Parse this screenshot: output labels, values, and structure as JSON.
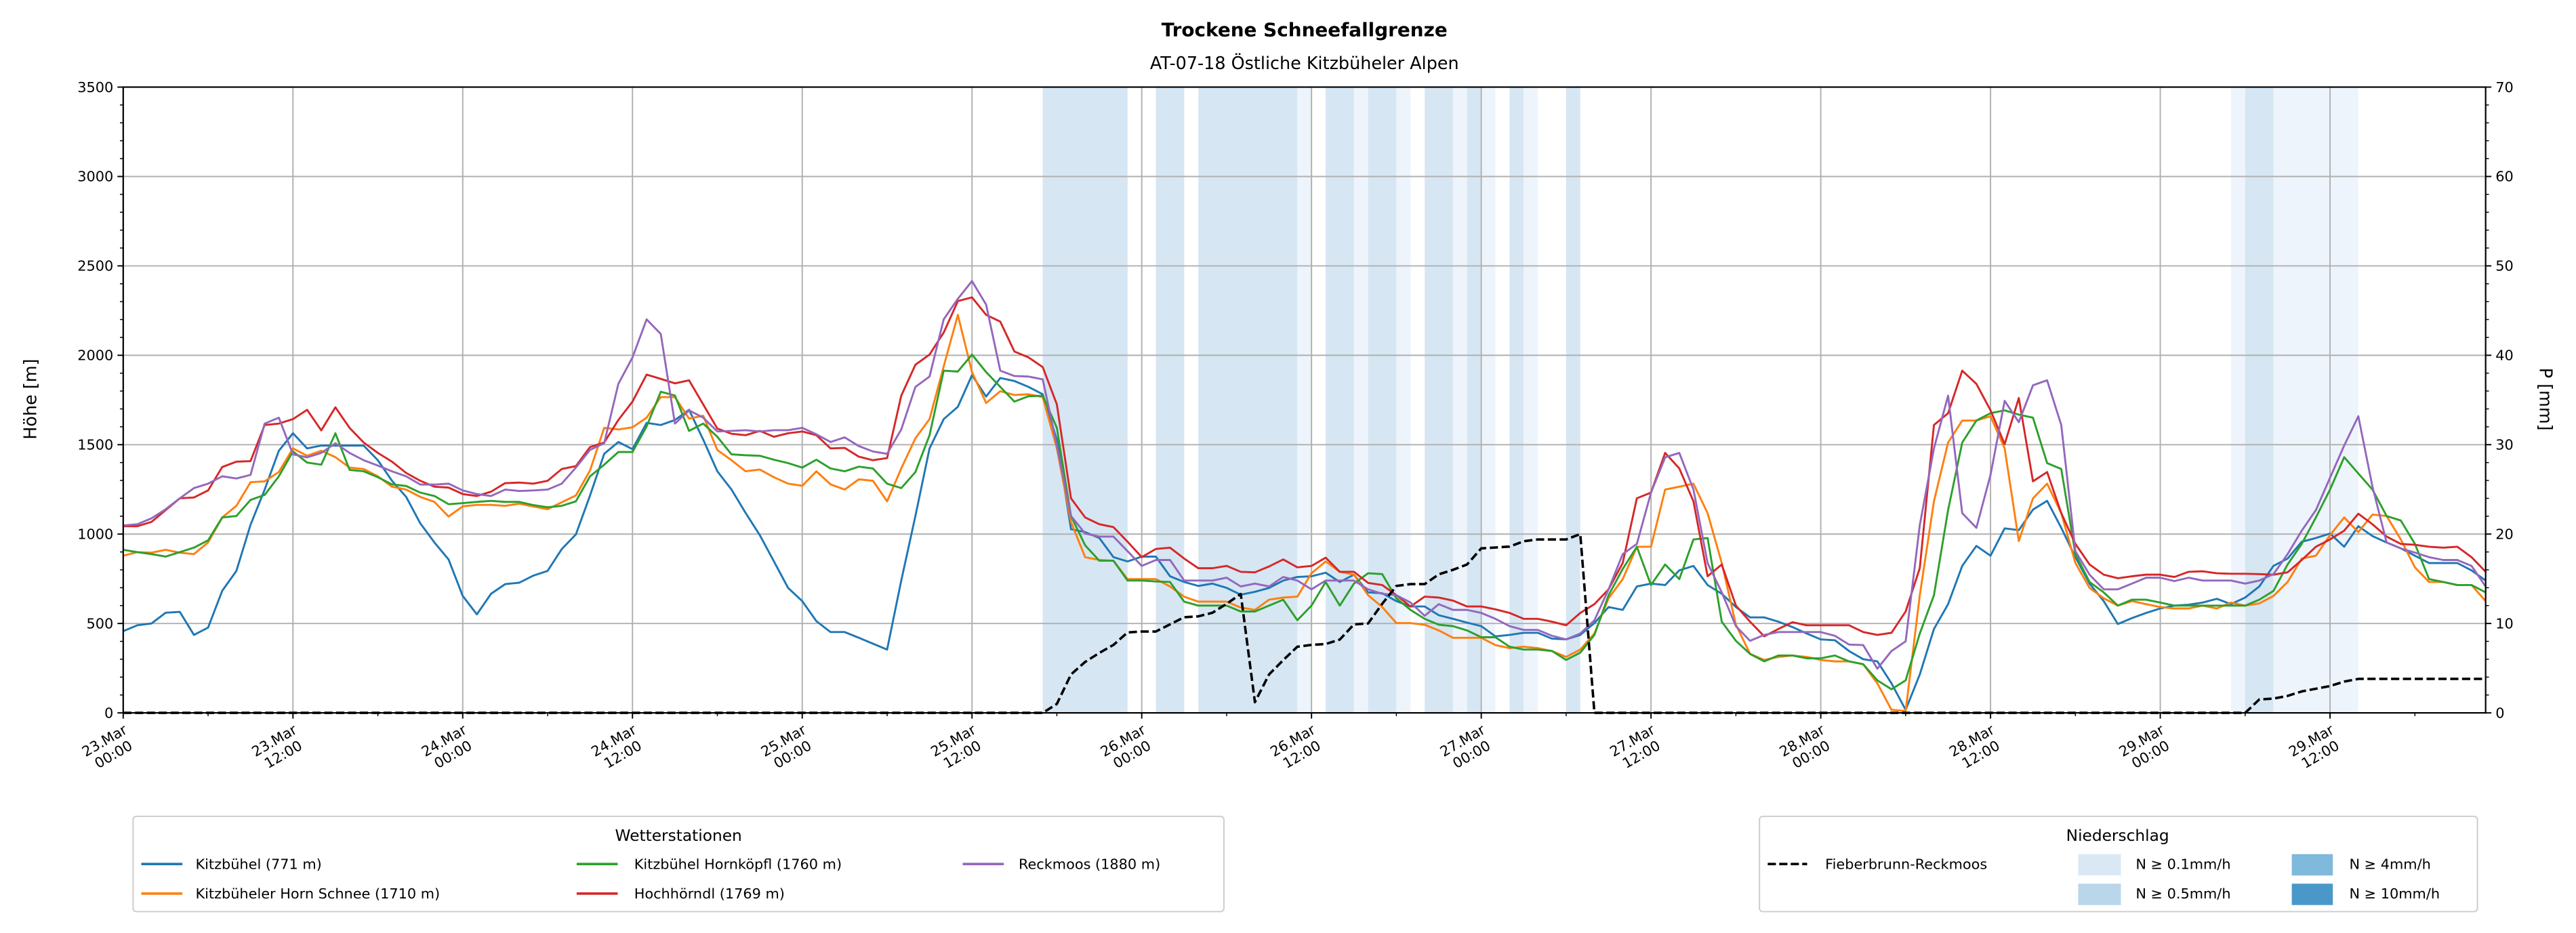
{
  "chart_data": {
    "type": "line",
    "title": "Trockene Schneefallgrenze",
    "subtitle": "AT-07-18 Östliche Kitzbüheler Alpen",
    "ylabel": "Höhe [m]",
    "ylabel_right": "P [mm]",
    "ylim": [
      0,
      3500
    ],
    "ylim_right": [
      0,
      70
    ],
    "yticks": [
      "0",
      "500",
      "1000",
      "1500",
      "2000",
      "2500",
      "3000",
      "3500"
    ],
    "yticks_right": [
      "0",
      "10",
      "20",
      "30",
      "40",
      "50",
      "60",
      "70"
    ],
    "x_unit": "hours since 23.Mar 00:00",
    "xlim": [
      0,
      167
    ],
    "xticks": [
      [
        "23.Mar",
        "00:00"
      ],
      [
        "23.Mar",
        "12:00"
      ],
      [
        "24.Mar",
        "00:00"
      ],
      [
        "24.Mar",
        "12:00"
      ],
      [
        "25.Mar",
        "00:00"
      ],
      [
        "25.Mar",
        "12:00"
      ],
      [
        "26.Mar",
        "00:00"
      ],
      [
        "26.Mar",
        "12:00"
      ],
      [
        "27.Mar",
        "00:00"
      ],
      [
        "27.Mar",
        "12:00"
      ],
      [
        "28.Mar",
        "00:00"
      ],
      [
        "28.Mar",
        "12:00"
      ],
      [
        "29.Mar",
        "00:00"
      ],
      [
        "29.Mar",
        "12:00"
      ]
    ],
    "grid": true,
    "series": [
      {
        "name": "Kitzbühel (771 m)",
        "color": "#1f77b4",
        "axis": "left",
        "values": [
          457,
          490,
          500,
          560,
          565,
          436,
          477,
          683,
          794,
          1052,
          1249,
          1466,
          1564,
          1479,
          1495,
          1495,
          1495,
          1495,
          1413,
          1298,
          1208,
          1060,
          953,
          858,
          654,
          551,
          666,
          720,
          728,
          768,
          794,
          916,
          998,
          1216,
          1449,
          1515,
          1475,
          1622,
          1610,
          1638,
          1695,
          1528,
          1351,
          1249,
          1118,
          994,
          847,
          699,
          625,
          513,
          452,
          452,
          420,
          387,
          354,
          740,
          1101,
          1479,
          1643,
          1712,
          1889,
          1769,
          1873,
          1856,
          1823,
          1782,
          1528,
          1027,
          1011,
          978,
          871,
          847,
          874,
          874,
          764,
          732,
          710,
          723,
          699,
          661,
          677,
          699,
          740,
          760,
          764,
          784,
          732,
          773,
          674,
          669,
          625,
          595,
          595,
          546,
          526,
          505,
          485,
          428,
          436,
          448,
          448,
          415,
          411,
          436,
          502,
          592,
          576,
          707,
          723,
          715,
          797,
          822,
          715,
          666,
          592,
          534,
          534,
          510,
          480,
          444,
          411,
          406,
          346,
          300,
          288,
          165,
          17,
          215,
          469,
          608,
          822,
          934,
          879,
          1032,
          1022,
          1137,
          1186,
          1035,
          871,
          723,
          625,
          497,
          530,
          559,
          584,
          600,
          605,
          617,
          638,
          608,
          645,
          707,
          822,
          863,
          957,
          978,
          1003,
          929,
          1044,
          989,
          953,
          920,
          879,
          838,
          838,
          838,
          797,
          740
        ]
      },
      {
        "name": "Kitzbüheler Horn Schnee (1710 m)",
        "color": "#ff7f0e",
        "axis": "left",
        "values": [
          879,
          899,
          896,
          912,
          896,
          888,
          953,
          1093,
          1158,
          1290,
          1295,
          1347,
          1479,
          1438,
          1466,
          1430,
          1372,
          1364,
          1323,
          1265,
          1249,
          1208,
          1180,
          1098,
          1155,
          1163,
          1163,
          1158,
          1170,
          1154,
          1139,
          1178,
          1216,
          1356,
          1594,
          1585,
          1597,
          1651,
          1766,
          1766,
          1646,
          1662,
          1470,
          1413,
          1351,
          1361,
          1318,
          1282,
          1270,
          1351,
          1278,
          1249,
          1306,
          1298,
          1183,
          1367,
          1536,
          1643,
          1938,
          2226,
          1906,
          1733,
          1799,
          1778,
          1782,
          1766,
          1479,
          1068,
          871,
          855,
          851,
          748,
          748,
          748,
          707,
          650,
          622,
          622,
          622,
          589,
          576,
          633,
          645,
          650,
          781,
          847,
          789,
          773,
          658,
          592,
          502,
          502,
          493,
          461,
          420,
          420,
          420,
          379,
          362,
          370,
          362,
          346,
          313,
          354,
          444,
          641,
          748,
          929,
          929,
          1249,
          1265,
          1282,
          1117,
          838,
          493,
          330,
          296,
          313,
          321,
          313,
          296,
          288,
          288,
          272,
          165,
          17,
          10,
          658,
          1183,
          1512,
          1635,
          1635,
          1659,
          1479,
          961,
          1200,
          1282,
          1117,
          838,
          699,
          641,
          600,
          625,
          608,
          592,
          584,
          584,
          600,
          584,
          617,
          600,
          612,
          654,
          732,
          863,
          879,
          994,
          1093,
          1011,
          1109,
          1101,
          970,
          814,
          732,
          732,
          715,
          715,
          625
        ]
      },
      {
        "name": "Kitzbühel Hornköpfl (1760 m)",
        "color": "#2ca02c",
        "axis": "left",
        "values": [
          912,
          899,
          888,
          874,
          899,
          924,
          965,
          1093,
          1101,
          1191,
          1219,
          1323,
          1462,
          1400,
          1388,
          1564,
          1359,
          1351,
          1318,
          1278,
          1269,
          1232,
          1213,
          1167,
          1173,
          1180,
          1186,
          1180,
          1180,
          1162,
          1150,
          1158,
          1183,
          1323,
          1388,
          1459,
          1459,
          1602,
          1796,
          1775,
          1577,
          1618,
          1544,
          1446,
          1441,
          1438,
          1416,
          1397,
          1372,
          1416,
          1367,
          1351,
          1377,
          1367,
          1282,
          1257,
          1347,
          1553,
          1914,
          1909,
          2004,
          1906,
          1823,
          1741,
          1771,
          1774,
          1594,
          1101,
          937,
          851,
          851,
          740,
          740,
          735,
          732,
          622,
          600,
          600,
          600,
          567,
          567,
          600,
          633,
          518,
          600,
          732,
          600,
          723,
          781,
          776,
          641,
          576,
          526,
          493,
          485,
          461,
          423,
          423,
          370,
          354,
          354,
          346,
          296,
          337,
          436,
          658,
          805,
          929,
          715,
          830,
          748,
          970,
          978,
          510,
          403,
          330,
          288,
          321,
          321,
          305,
          305,
          321,
          288,
          272,
          182,
          132,
          182,
          444,
          658,
          1134,
          1512,
          1635,
          1676,
          1692,
          1668,
          1651,
          1397,
          1364,
          888,
          732,
          674,
          600,
          633,
          633,
          617,
          600,
          600,
          600,
          600,
          600,
          600,
          633,
          682,
          830,
          945,
          1093,
          1249,
          1430,
          1339,
          1249,
          1101,
          1076,
          945,
          748,
          732,
          715,
          715,
          674
        ]
      },
      {
        "name": "Hochhörndl (1769 m)",
        "color": "#d62728",
        "axis": "left",
        "values": [
          1044,
          1044,
          1068,
          1134,
          1200,
          1205,
          1244,
          1375,
          1405,
          1408,
          1610,
          1618,
          1643,
          1695,
          1580,
          1709,
          1594,
          1512,
          1454,
          1405,
          1342,
          1298,
          1265,
          1260,
          1224,
          1213,
          1237,
          1285,
          1288,
          1282,
          1298,
          1364,
          1380,
          1487,
          1512,
          1638,
          1741,
          1892,
          1868,
          1843,
          1860,
          1725,
          1590,
          1561,
          1553,
          1577,
          1544,
          1564,
          1574,
          1553,
          1479,
          1482,
          1433,
          1413,
          1425,
          1774,
          1947,
          2004,
          2127,
          2303,
          2324,
          2226,
          2188,
          2021,
          1988,
          1934,
          1725,
          1200,
          1093,
          1055,
          1039,
          957,
          871,
          917,
          924,
          863,
          809,
          809,
          822,
          789,
          786,
          819,
          858,
          814,
          822,
          868,
          789,
          789,
          727,
          715,
          658,
          595,
          650,
          645,
          628,
          595,
          595,
          579,
          559,
          526,
          526,
          510,
          490,
          559,
          608,
          691,
          838,
          1200,
          1232,
          1454,
          1367,
          1183,
          764,
          830,
          600,
          510,
          428,
          469,
          507,
          490,
          490,
          490,
          490,
          452,
          436,
          448,
          567,
          810,
          1610,
          1676,
          1914,
          1840,
          1692,
          1503,
          1761,
          1295,
          1347,
          1117,
          945,
          830,
          773,
          753,
          764,
          773,
          773,
          760,
          789,
          792,
          781,
          778,
          778,
          776,
          773,
          786,
          855,
          929,
          970,
          1019,
          1114,
          1055,
          986,
          945,
          940,
          929,
          924,
          929,
          871,
          789
        ]
      },
      {
        "name": "Reckmoos (1880 m)",
        "color": "#9467bd",
        "axis": "left",
        "values": [
          1048,
          1055,
          1088,
          1139,
          1200,
          1257,
          1282,
          1323,
          1311,
          1331,
          1618,
          1651,
          1446,
          1429,
          1454,
          1508,
          1454,
          1413,
          1383,
          1351,
          1323,
          1277,
          1277,
          1282,
          1244,
          1224,
          1213,
          1249,
          1241,
          1244,
          1249,
          1282,
          1372,
          1471,
          1508,
          1840,
          1988,
          2201,
          2119,
          1618,
          1692,
          1651,
          1574,
          1577,
          1581,
          1574,
          1581,
          1581,
          1594,
          1558,
          1515,
          1541,
          1492,
          1462,
          1449,
          1585,
          1823,
          1881,
          2201,
          2316,
          2415,
          2283,
          1914,
          1884,
          1881,
          1865,
          1495,
          1101,
          1003,
          986,
          986,
          904,
          822,
          855,
          855,
          740,
          740,
          740,
          756,
          707,
          723,
          707,
          760,
          740,
          691,
          740,
          740,
          740,
          691,
          666,
          658,
          617,
          543,
          608,
          576,
          576,
          559,
          526,
          485,
          464,
          464,
          431,
          411,
          444,
          518,
          691,
          888,
          945,
          1232,
          1429,
          1454,
          1249,
          838,
          674,
          485,
          403,
          436,
          452,
          452,
          452,
          452,
          431,
          382,
          379,
          247,
          346,
          400,
          1050,
          1479,
          1774,
          1117,
          1035,
          1331,
          1745,
          1626,
          1832,
          1860,
          1610,
          904,
          773,
          691,
          691,
          723,
          756,
          756,
          737,
          756,
          740,
          740,
          740,
          723,
          740,
          776,
          888,
          1019,
          1134,
          1315,
          1495,
          1659,
          1265,
          953,
          920,
          896,
          871,
          855,
          855,
          822,
          707
        ]
      },
      {
        "name": "Fieberbrunn-Reckmoos",
        "color": "#000000",
        "axis": "right",
        "style": "dashed",
        "values": [
          0,
          0,
          0,
          0,
          0,
          0,
          0,
          0,
          0,
          0,
          0,
          0,
          0,
          0,
          0,
          0,
          0,
          0,
          0,
          0,
          0,
          0,
          0,
          0,
          0,
          0,
          0,
          0,
          0,
          0,
          0,
          0,
          0,
          0,
          0,
          0,
          0,
          0,
          0,
          0,
          0,
          0,
          0,
          0,
          0,
          0,
          0,
          0,
          0,
          0,
          0,
          0,
          0,
          0,
          0,
          0,
          0,
          0,
          0,
          0,
          0,
          0,
          0,
          0,
          0,
          0,
          1.0,
          4.3,
          5.7,
          6.7,
          7.6,
          9.0,
          9.1,
          9.1,
          9.9,
          10.7,
          10.8,
          11.2,
          12.2,
          13.3,
          1.2,
          4.3,
          5.9,
          7.4,
          7.6,
          7.7,
          8.2,
          9.9,
          10.0,
          12.2,
          14.2,
          14.4,
          14.4,
          15.5,
          16.0,
          16.6,
          18.4,
          18.5,
          18.6,
          19.2,
          19.4,
          19.4,
          19.4,
          20.0,
          0,
          0,
          0,
          0,
          0,
          0,
          0,
          0,
          0,
          0,
          0,
          0,
          0,
          0,
          0,
          0,
          0,
          0,
          0,
          0,
          0,
          0,
          0,
          0,
          0,
          0,
          0,
          0,
          0,
          0,
          0,
          0,
          0,
          0,
          0,
          0,
          0,
          0,
          0,
          0,
          0,
          0,
          0,
          0,
          0,
          0,
          0,
          1.5,
          1.6,
          1.9,
          2.4,
          2.7,
          3.0,
          3.5,
          3.8,
          3.8,
          3.8,
          3.8,
          3.8,
          3.8,
          3.8,
          3.8,
          3.8,
          3.8
        ]
      }
    ],
    "precip_bands": [
      [
        65,
        71,
        "0.5"
      ],
      [
        73,
        75,
        "0.5"
      ],
      [
        76,
        83,
        "0.5"
      ],
      [
        83,
        84,
        "0.1"
      ],
      [
        85,
        87,
        "0.5"
      ],
      [
        87,
        88,
        "0.1"
      ],
      [
        88,
        90,
        "0.5"
      ],
      [
        90,
        91,
        "0.1"
      ],
      [
        92,
        94,
        "0.5"
      ],
      [
        94,
        95,
        "0.1"
      ],
      [
        95,
        96,
        "0.5"
      ],
      [
        96,
        97,
        "0.1"
      ],
      [
        98,
        99,
        "0.5"
      ],
      [
        99,
        100,
        "0.1"
      ],
      [
        102,
        103,
        "0.5"
      ],
      [
        149,
        150,
        "0.1"
      ],
      [
        150,
        152,
        "0.5"
      ],
      [
        152,
        158,
        "0.1"
      ]
    ],
    "band_colors": {
      "0.1": "#eef4fb",
      "0.5": "#d6e6f3"
    },
    "legend_stations": {
      "title": "Wetterstationen",
      "placement": "bottom-left",
      "items": [
        "Kitzbühel (771 m)",
        "Kitzbüheler Horn Schnee (1710 m)",
        "Kitzbühel Hornköpfl (1760 m)",
        "Hochhörndl (1769 m)",
        "Reckmoos (1880 m)"
      ]
    },
    "legend_precip": {
      "title": "Niederschlag",
      "placement": "bottom-right",
      "line_item": "Fieberbrunn-Reckmoos",
      "patches": [
        {
          "label": "N ≥ 0.1mm/h",
          "color": "#dae8f5"
        },
        {
          "label": "N ≥ 0.5mm/h",
          "color": "#bad6eb"
        },
        {
          "label": "N ≥ 4mm/h",
          "color": "#7fb9dc"
        },
        {
          "label": "N ≥ 10mm/h",
          "color": "#4a98c9"
        }
      ]
    }
  }
}
